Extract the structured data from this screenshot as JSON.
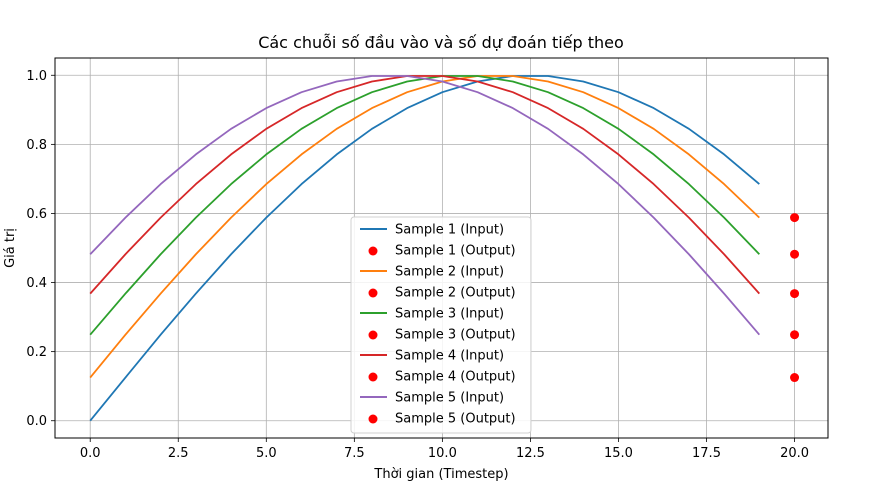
{
  "chart_data": {
    "type": "line",
    "title": "Các chuỗi số đầu vào và số dự đoán tiếp theo",
    "xlabel": "Thời gian (Timestep)",
    "ylabel": "Giá trị",
    "xlim": [
      -1.0,
      20.95
    ],
    "ylim": [
      -0.05,
      1.05
    ],
    "xticks": [
      "0.0",
      "2.5",
      "5.0",
      "7.5",
      "10.0",
      "12.5",
      "15.0",
      "17.5",
      "20.0"
    ],
    "yticks": [
      "0.0",
      "0.2",
      "0.4",
      "0.6",
      "0.8",
      "1.0"
    ],
    "grid": true,
    "legend_position": "center-bottom",
    "x": [
      0,
      1,
      2,
      3,
      4,
      5,
      6,
      7,
      8,
      9,
      10,
      11,
      12,
      13,
      14,
      15,
      16,
      17,
      18,
      19
    ],
    "series": [
      {
        "name": "Sample 1 (Input)",
        "color": "#1f77b4",
        "values": [
          0.0,
          0.125,
          0.249,
          0.368,
          0.482,
          0.588,
          0.685,
          0.771,
          0.845,
          0.905,
          0.951,
          0.982,
          0.998,
          0.998,
          0.982,
          0.951,
          0.905,
          0.845,
          0.771,
          0.685
        ],
        "output_name": "Sample 1 (Output)",
        "output": 0.588
      },
      {
        "name": "Sample 2 (Input)",
        "color": "#ff7f0e",
        "values": [
          0.125,
          0.249,
          0.368,
          0.482,
          0.588,
          0.685,
          0.771,
          0.845,
          0.905,
          0.951,
          0.982,
          0.998,
          0.998,
          0.982,
          0.951,
          0.905,
          0.845,
          0.771,
          0.685,
          0.588
        ],
        "output_name": "Sample 2 (Output)",
        "output": 0.482
      },
      {
        "name": "Sample 3 (Input)",
        "color": "#2ca02c",
        "values": [
          0.249,
          0.368,
          0.482,
          0.588,
          0.685,
          0.771,
          0.845,
          0.905,
          0.951,
          0.982,
          0.998,
          0.998,
          0.982,
          0.951,
          0.905,
          0.845,
          0.771,
          0.685,
          0.588,
          0.482
        ],
        "output_name": "Sample 3 (Output)",
        "output": 0.368
      },
      {
        "name": "Sample 4 (Input)",
        "color": "#d62728",
        "values": [
          0.368,
          0.482,
          0.588,
          0.685,
          0.771,
          0.845,
          0.905,
          0.951,
          0.982,
          0.998,
          0.998,
          0.982,
          0.951,
          0.905,
          0.845,
          0.771,
          0.685,
          0.588,
          0.482,
          0.368
        ],
        "output_name": "Sample 4 (Output)",
        "output": 0.249
      },
      {
        "name": "Sample 5 (Input)",
        "color": "#9467bd",
        "values": [
          0.482,
          0.588,
          0.685,
          0.771,
          0.845,
          0.905,
          0.951,
          0.982,
          0.998,
          0.998,
          0.982,
          0.951,
          0.905,
          0.845,
          0.771,
          0.685,
          0.588,
          0.482,
          0.368,
          0.249
        ],
        "output_name": "Sample 5 (Output)",
        "output": 0.125
      }
    ],
    "output_x": 20,
    "output_color": "#ff0000"
  }
}
